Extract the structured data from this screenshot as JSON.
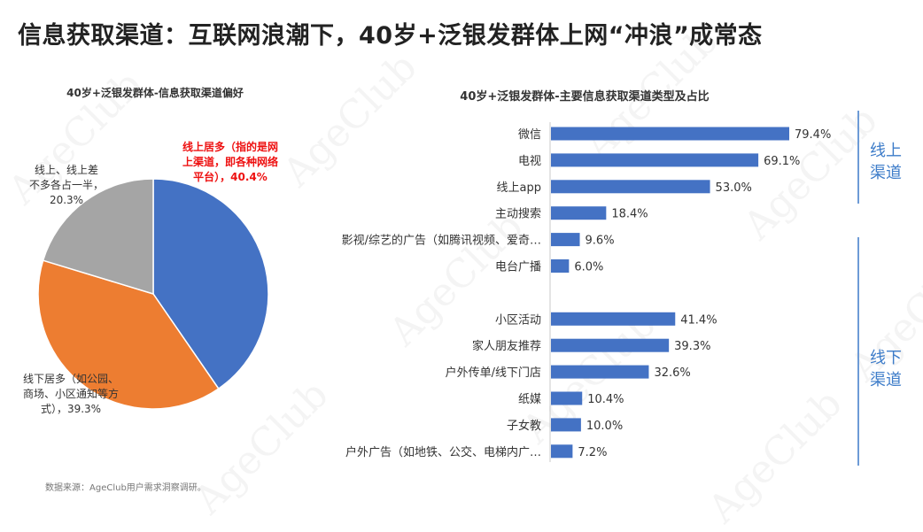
{
  "title": "信息获取渠道：互联网浪潮下，40岁+泛银发群体上网“冲浪”成常态",
  "watermark_text": "AgeClub",
  "source_note": "数据来源：AgeClub用户需求洞察调研。",
  "colors": {
    "bar": "#4472c4",
    "pie_online": "#4472c4",
    "pie_offline": "#ed7d31",
    "pie_half": "#a5a5a5",
    "group_label": "#3d7cc9"
  },
  "groups": {
    "online": [
      "线上",
      "渠道"
    ],
    "offline": [
      "线下",
      "渠道"
    ]
  },
  "chart_data": [
    {
      "type": "pie",
      "title": "40岁+泛银发群体-信息获取渠道偏好",
      "slices": [
        {
          "label": [
            "线上居多（指的是网",
            "上渠道，即各种网络",
            "平台），40.4%"
          ],
          "value": 40.4,
          "color": "#4472c4",
          "highlight": true
        },
        {
          "label": [
            "线下居多（如公园、",
            "商场、小区通知等方",
            "式），39.3%"
          ],
          "value": 39.3,
          "color": "#ed7d31",
          "highlight": false
        },
        {
          "label": [
            "线上、线上差",
            "不多各占一半，",
            "20.3%"
          ],
          "value": 20.3,
          "color": "#a5a5a5",
          "highlight": false
        }
      ]
    },
    {
      "type": "bar",
      "orientation": "horizontal",
      "title": "40岁+泛银发群体-主要信息获取渠道类型及占比",
      "categories": [
        "微信",
        "电视",
        "线上app",
        "主动搜索",
        "影视/综艺的广告（如腾讯视频、爱奇…",
        "电台广播",
        "",
        "小区活动",
        "家人朋友推荐",
        "户外传单/线下门店",
        "纸媒",
        "子女教",
        "户外广告（如地铁、公交、电梯内广…"
      ],
      "values": [
        79.4,
        69.1,
        53.0,
        18.4,
        9.6,
        6.0,
        null,
        41.4,
        39.3,
        32.6,
        10.4,
        10.0,
        7.2
      ],
      "value_labels": [
        "79.4%",
        "69.1%",
        "53.0%",
        "18.4%",
        "9.6%",
        "6.0%",
        "",
        "41.4%",
        "39.3%",
        "32.6%",
        "10.4%",
        "10.0%",
        "7.2%"
      ],
      "xlim": [
        0,
        100
      ],
      "color": "#4472c4"
    }
  ]
}
